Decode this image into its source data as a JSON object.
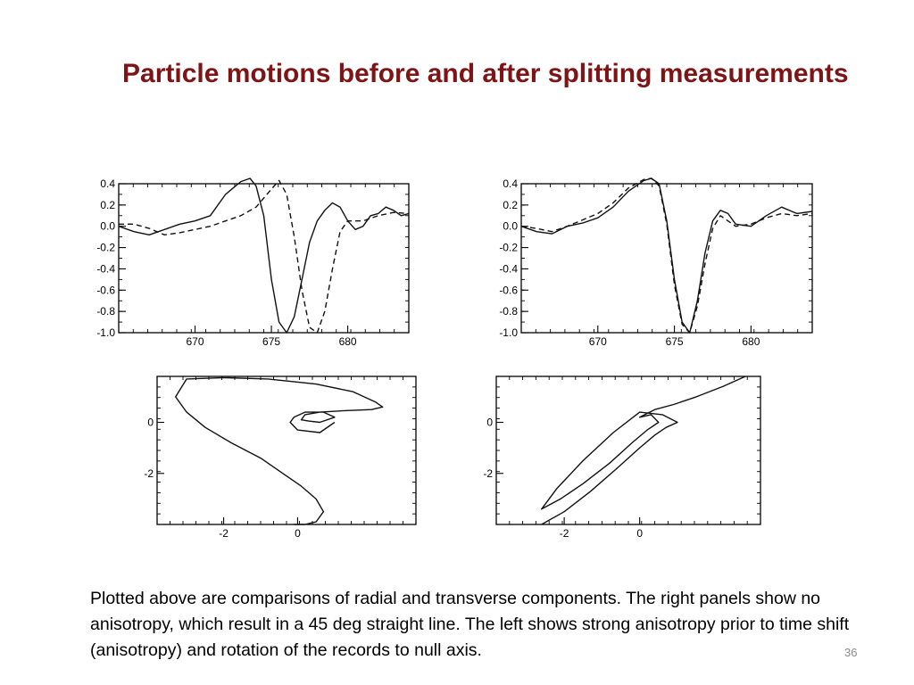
{
  "slide": {
    "title": "Particle motions before and after splitting measurements",
    "caption": "Plotted above are comparisons of radial and transverse components.  The right panels show no anisotropy, which result in a 45 deg straight line.  The left shows strong anisotropy prior to time shift (anisotropy) and rotation of the records to null axis.",
    "page_number": "36",
    "title_color": "#7f1416"
  },
  "chart_data": [
    {
      "type": "line",
      "panel": "top-left",
      "xlim": [
        665,
        684
      ],
      "ylim": [
        -1.0,
        0.4
      ],
      "x_ticks": [
        "670",
        "675",
        "680"
      ],
      "y_ticks": [
        "0.4",
        "0.2",
        "0.0",
        "-0.2",
        "-0.4",
        "-0.6",
        "-0.8",
        "-1.0"
      ],
      "series": [
        {
          "style": "solid",
          "x": [
            665,
            666,
            667,
            668,
            669,
            670,
            671,
            672,
            673,
            673.6,
            674,
            674.5,
            675,
            675.5,
            676,
            676.5,
            677,
            677.5,
            678,
            678.5,
            679,
            679.5,
            680,
            680.5,
            681,
            681.5,
            682,
            682.5,
            683,
            683.5,
            684
          ],
          "y": [
            0.0,
            -0.05,
            -0.08,
            -0.03,
            0.02,
            0.05,
            0.1,
            0.3,
            0.42,
            0.45,
            0.38,
            0.1,
            -0.5,
            -0.9,
            -1.0,
            -0.85,
            -0.5,
            -0.15,
            0.05,
            0.15,
            0.22,
            0.18,
            0.05,
            -0.03,
            0.0,
            0.1,
            0.12,
            0.18,
            0.15,
            0.1,
            0.12
          ]
        },
        {
          "style": "dashed",
          "x": [
            665,
            666,
            667,
            668,
            669,
            670,
            671,
            672,
            673,
            674,
            675,
            675.5,
            676,
            676.5,
            677,
            677.5,
            678,
            678.5,
            679,
            679.5,
            680,
            681,
            682,
            683,
            684
          ],
          "y": [
            0.02,
            0.02,
            -0.02,
            -0.08,
            -0.06,
            -0.03,
            0.0,
            0.05,
            0.1,
            0.18,
            0.35,
            0.43,
            0.3,
            -0.1,
            -0.6,
            -0.95,
            -1.0,
            -0.8,
            -0.4,
            -0.05,
            0.05,
            0.05,
            0.1,
            0.13,
            0.12
          ]
        }
      ]
    },
    {
      "type": "line",
      "panel": "top-right",
      "xlim": [
        665,
        684
      ],
      "ylim": [
        -1.0,
        0.4
      ],
      "x_ticks": [
        "670",
        "675",
        "680"
      ],
      "y_ticks": [
        "0.4",
        "0.2",
        "0.0",
        "-0.2",
        "-0.4",
        "-0.6",
        "-0.8",
        "-1.0"
      ],
      "series": [
        {
          "style": "solid",
          "x": [
            665,
            666,
            667,
            668,
            669,
            670,
            671,
            672,
            673,
            673.5,
            674,
            674.5,
            675,
            675.5,
            676,
            676.5,
            677,
            677.5,
            678,
            678.5,
            679,
            680,
            681,
            682,
            683,
            684
          ],
          "y": [
            0.0,
            -0.05,
            -0.07,
            0.0,
            0.03,
            0.08,
            0.18,
            0.33,
            0.43,
            0.45,
            0.4,
            0.05,
            -0.5,
            -0.9,
            -1.0,
            -0.7,
            -0.25,
            0.05,
            0.15,
            0.12,
            0.02,
            0.0,
            0.1,
            0.18,
            0.12,
            0.14
          ]
        },
        {
          "style": "dashed",
          "x": [
            665,
            666,
            667,
            668,
            669,
            670,
            671,
            672,
            673,
            673.5,
            674,
            674.5,
            675,
            675.5,
            676,
            676.5,
            677,
            677.5,
            678,
            678.5,
            679,
            680,
            681,
            682,
            683,
            684
          ],
          "y": [
            0.0,
            -0.02,
            -0.05,
            0.0,
            0.06,
            0.12,
            0.22,
            0.36,
            0.44,
            0.45,
            0.38,
            0.02,
            -0.55,
            -0.92,
            -1.0,
            -0.75,
            -0.35,
            -0.02,
            0.1,
            0.05,
            0.0,
            0.02,
            0.08,
            0.12,
            0.1,
            0.12
          ]
        }
      ]
    },
    {
      "type": "line",
      "panel": "bottom-left",
      "xlim": [
        -3.8,
        3.2
      ],
      "ylim": [
        -4.0,
        1.8
      ],
      "x_ticks": [
        "-2",
        "0"
      ],
      "y_ticks": [
        "0",
        "-2"
      ],
      "series": [
        {
          "style": "solid",
          "x": [
            -0.1,
            0.2,
            0.5,
            0.7,
            0.5,
            0.1,
            -0.4,
            -1.0,
            -1.8,
            -2.5,
            -3.0,
            -3.3,
            -3.0,
            -2.0,
            -0.8,
            0.5,
            1.5,
            2.1,
            2.3,
            2.0,
            1.2,
            0.6,
            0.2,
            0.1,
            0.3,
            0.6,
            1.0,
            0.7,
            0.2,
            -0.1,
            -0.2,
            0.0,
            0.6,
            1.0
          ],
          "y": [
            -4.0,
            -4.0,
            -3.9,
            -3.5,
            -3.0,
            -2.5,
            -2.0,
            -1.4,
            -0.8,
            -0.2,
            0.4,
            1.0,
            1.7,
            1.75,
            1.7,
            1.5,
            1.2,
            0.8,
            0.6,
            0.5,
            0.45,
            0.4,
            0.3,
            0.1,
            0.05,
            0.0,
            0.2,
            0.4,
            0.4,
            0.2,
            0.0,
            -0.3,
            -0.4,
            0.0
          ]
        }
      ]
    },
    {
      "type": "line",
      "panel": "bottom-right",
      "xlim": [
        -3.8,
        3.2
      ],
      "ylim": [
        -4.0,
        1.8
      ],
      "x_ticks": [
        "-2",
        "0"
      ],
      "y_ticks": [
        "0",
        "-2"
      ],
      "series": [
        {
          "style": "solid",
          "x": [
            -2.6,
            -2.0,
            -1.3,
            -0.6,
            0.0,
            0.4,
            0.7,
            1.0,
            0.6,
            0.0,
            -0.7,
            -1.5,
            -2.2,
            -2.6,
            -2.1,
            -1.5,
            -0.8,
            -0.2,
            0.2,
            0.5,
            0.3,
            0.0,
            0.4,
            0.9,
            1.5,
            2.2,
            2.8
          ],
          "y": [
            -4.0,
            -3.5,
            -2.7,
            -1.8,
            -1.0,
            -0.5,
            -0.2,
            0.0,
            0.3,
            0.4,
            -0.4,
            -1.5,
            -2.6,
            -3.4,
            -3.0,
            -2.4,
            -1.6,
            -0.8,
            -0.3,
            0.0,
            0.3,
            0.2,
            0.5,
            0.7,
            1.0,
            1.4,
            1.8
          ]
        }
      ]
    }
  ]
}
